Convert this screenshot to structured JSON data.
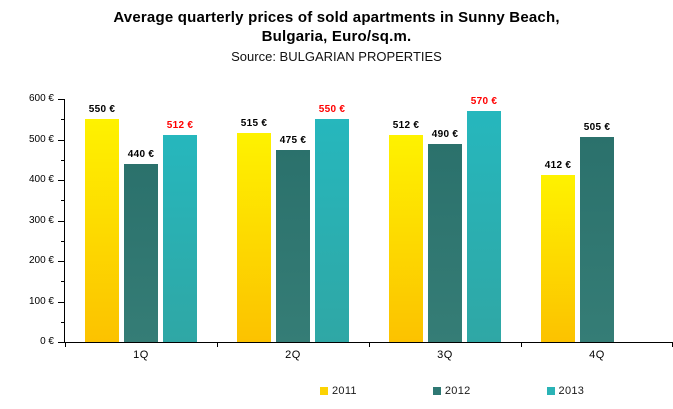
{
  "header": {
    "title_line1": "Average quarterly prices of sold apartments in Sunny Beach,",
    "title_line2": "Bulgaria, Euro/sq.m.",
    "source": "Source: BULGARIAN PROPERTIES"
  },
  "chart_data": {
    "type": "bar",
    "categories": [
      "1Q",
      "2Q",
      "3Q",
      "4Q"
    ],
    "series": [
      {
        "name": "2011",
        "values": [
          550,
          515,
          512,
          412
        ],
        "labels": [
          "550 €",
          "515 €",
          "512 €",
          "412 €"
        ],
        "label_color": "#000000",
        "gradient_top": "#FEF200",
        "gradient_bottom": "#FCC200",
        "legend_color": "#FCD303"
      },
      {
        "name": "2012",
        "values": [
          440,
          475,
          490,
          505
        ],
        "labels": [
          "440 €",
          "475 €",
          "490 €",
          "505 €"
        ],
        "label_color": "#000000",
        "gradient_top": "#2B716C",
        "gradient_bottom": "#357D76",
        "legend_color": "#2E7873"
      },
      {
        "name": "2013",
        "values": [
          512,
          550,
          570,
          null
        ],
        "labels": [
          "512 €",
          "550 €",
          "570 €",
          null
        ],
        "label_color": "#FF0000",
        "gradient_top": "#26B7BD",
        "gradient_bottom": "#2FA7A5",
        "legend_color": "#2AB3B6"
      }
    ],
    "ylim": [
      0,
      600
    ],
    "y_major_step": 100,
    "y_minor_step": 50,
    "y_tick_labels": [
      "0 €",
      "100 €",
      "200 €",
      "300 €",
      "400 €",
      "500 €",
      "600 €"
    ],
    "grid": false,
    "legend_position": "bottom",
    "axis_color": "#000000"
  }
}
